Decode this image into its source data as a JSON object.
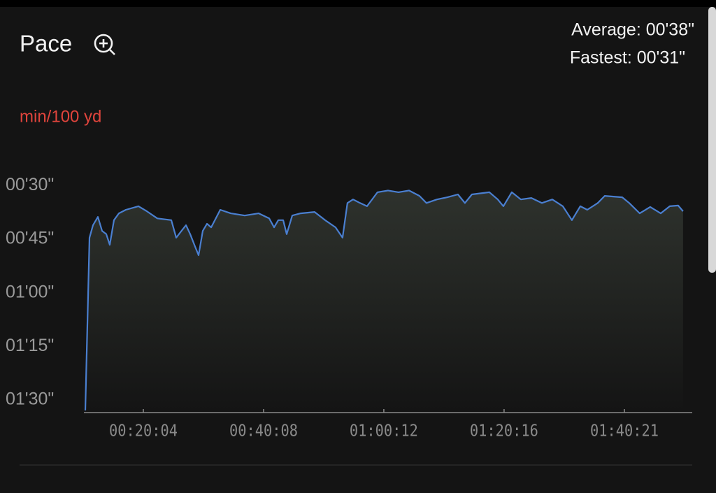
{
  "chart_data": {
    "type": "line",
    "title": "Pace",
    "average": "Average: 00'38\"",
    "fastest": "Fastest: 00'31\"",
    "y_label": "min/100 yd",
    "color": "#4a7fd0",
    "ylim": [
      93.5,
      28
    ],
    "yticks": [
      {
        "value": 30,
        "label": "00'30\""
      },
      {
        "value": 45,
        "label": "00'45\""
      },
      {
        "value": 60,
        "label": "01'00\""
      },
      {
        "value": 75,
        "label": "01'15\""
      },
      {
        "value": 90,
        "label": "01'30\""
      }
    ],
    "xlim": [
      609,
      6700
    ],
    "xticks": [
      {
        "value": 1204,
        "label": "00:20:04"
      },
      {
        "value": 2408,
        "label": "00:40:08"
      },
      {
        "value": 3612,
        "label": "01:00:12"
      },
      {
        "value": 4816,
        "label": "01:20:16"
      },
      {
        "value": 6021,
        "label": "01:40:21"
      }
    ],
    "x": [
      623,
      665,
      700,
      749,
      791,
      833,
      868,
      910,
      959,
      1029,
      1155,
      1239,
      1344,
      1484,
      1533,
      1575,
      1631,
      1673,
      1715,
      1757,
      1799,
      1841,
      1883,
      1974,
      2079,
      2219,
      2359,
      2464,
      2513,
      2555,
      2604,
      2639,
      2695,
      2779,
      2919,
      3024,
      3129,
      3199,
      3248,
      3304,
      3374,
      3444,
      3549,
      3654,
      3759,
      3864,
      3969,
      4039,
      4144,
      4249,
      4354,
      4424,
      4494,
      4669,
      4753,
      4809,
      4893,
      4984,
      5089,
      5194,
      5299,
      5404,
      5495,
      5579,
      5649,
      5754,
      5824,
      5999,
      6069,
      6174,
      6279,
      6384,
      6475,
      6559,
      6608
    ],
    "values": [
      92.9,
      44.6,
      41.1,
      38.8,
      42.7,
      43.6,
      46.6,
      39.7,
      37.8,
      36.8,
      35.8,
      37.2,
      39.2,
      39.7,
      44.6,
      43.1,
      41.1,
      43.6,
      46.6,
      49.5,
      42.7,
      40.7,
      41.7,
      36.8,
      37.8,
      38.4,
      37.8,
      39.2,
      41.7,
      39.7,
      39.7,
      43.6,
      38.4,
      37.8,
      37.4,
      39.7,
      41.7,
      44.6,
      34.9,
      33.9,
      34.9,
      35.8,
      31.9,
      31.4,
      31.9,
      31.4,
      32.9,
      34.9,
      33.9,
      33.3,
      32.5,
      34.9,
      32.5,
      31.9,
      33.9,
      35.8,
      31.9,
      33.9,
      33.5,
      34.9,
      33.9,
      35.8,
      39.7,
      35.8,
      36.8,
      34.9,
      32.9,
      33.3,
      34.9,
      37.8,
      36.0,
      37.8,
      35.8,
      35.6,
      37.2
    ]
  }
}
